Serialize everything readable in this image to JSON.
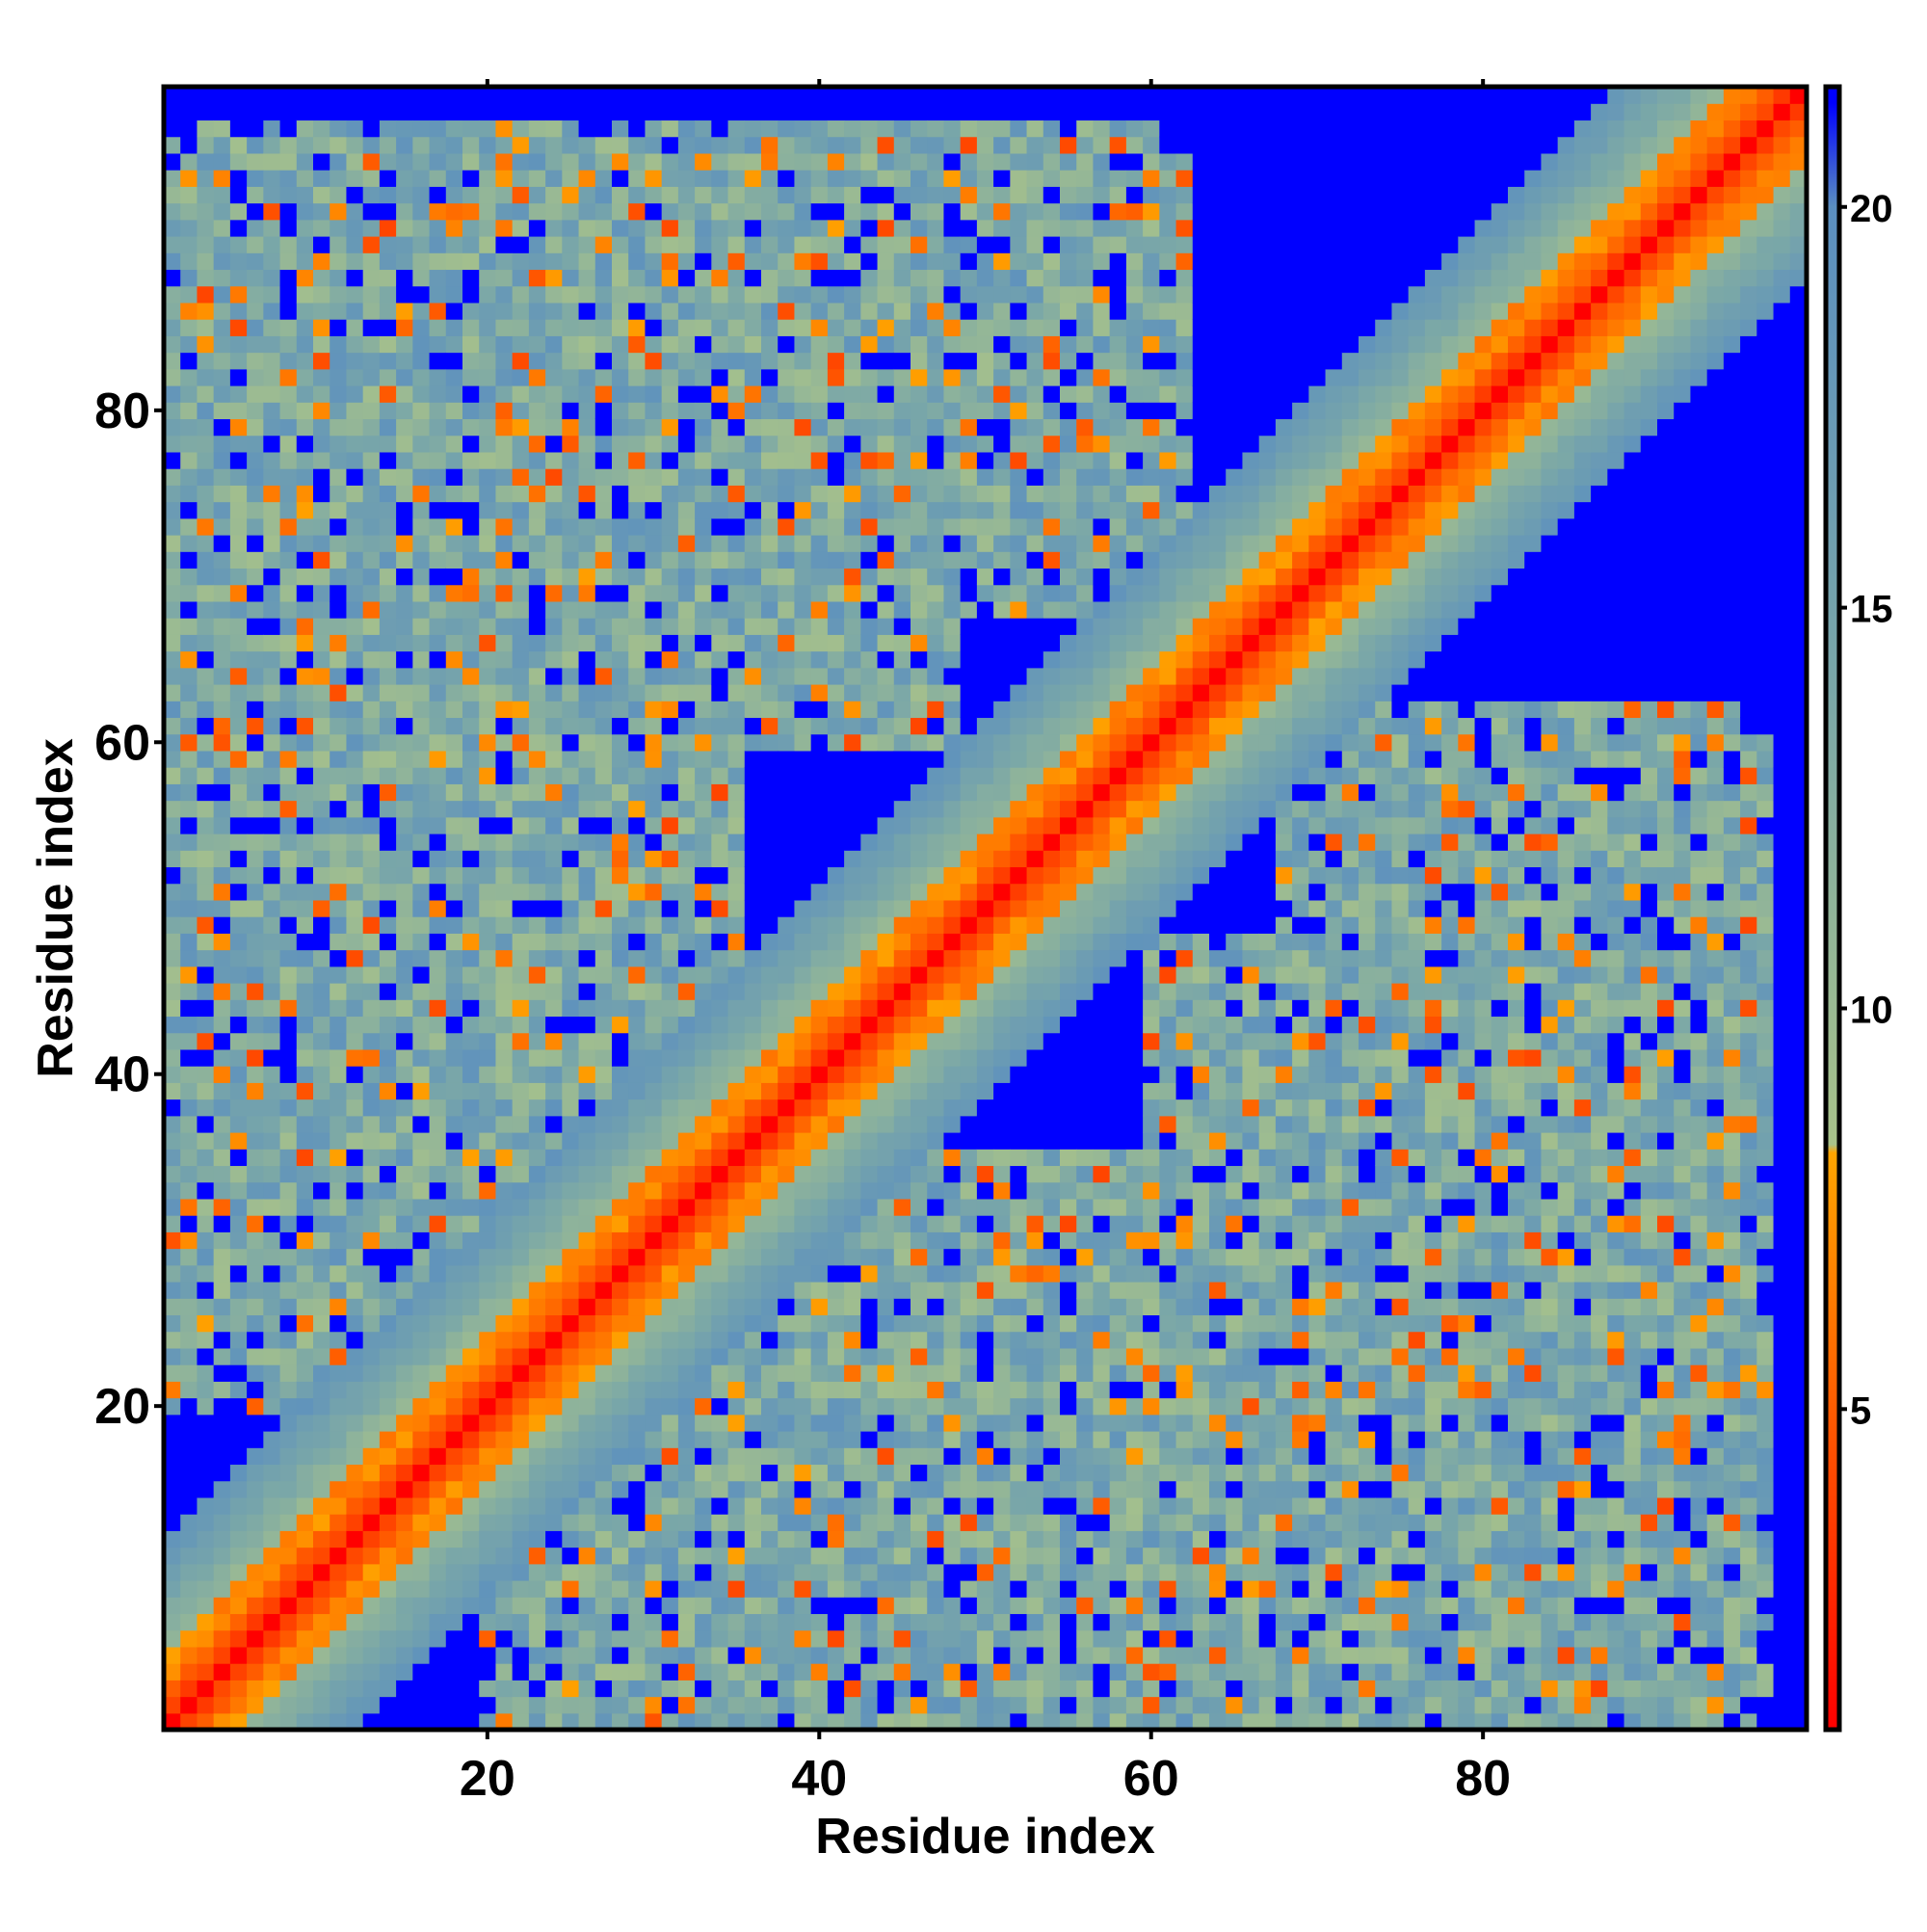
{
  "chart_data": {
    "type": "heatmap",
    "title": "",
    "xlabel": "Residue index",
    "ylabel": "Residue index",
    "xlim": [
      1,
      99
    ],
    "ylim": [
      1,
      99
    ],
    "xticks": [
      20,
      40,
      60,
      80
    ],
    "yticks": [
      20,
      40,
      60,
      80
    ],
    "colorbar": {
      "range": [
        1,
        21.5
      ],
      "ticks": [
        5,
        10,
        15,
        20
      ],
      "placement": "right",
      "stops": [
        {
          "value": 1,
          "color": "#ff0000"
        },
        {
          "value": 8.2,
          "color": "#ffa500"
        },
        {
          "value": 8.3,
          "color": "#a8c28a"
        },
        {
          "value": 14,
          "color": "#7aa7a8"
        },
        {
          "value": 20,
          "color": "#5b8fc0"
        },
        {
          "value": 21.3,
          "color": "#0000ff"
        }
      ]
    },
    "matrix_description": {
      "n": 99,
      "diagonal_value": 1,
      "background_value": 21.3,
      "contact_regions": [
        {
          "x": [
            1,
            35
          ],
          "y": [
            20,
            78
          ]
        },
        {
          "x": [
            25,
            48
          ],
          "y": [
            60,
            95
          ]
        },
        {
          "x": [
            48,
            62
          ],
          "y": [
            68,
            95
          ]
        },
        {
          "x": [
            75,
            97
          ],
          "y": [
            1,
            60
          ]
        },
        {
          "x": [
            38,
            70
          ],
          "y": [
            1,
            30
          ]
        },
        {
          "x": [
            60,
            87
          ],
          "y": [
            20,
            40
          ]
        },
        {
          "x": [
            78,
            95
          ],
          "y": [
            40,
            60
          ]
        }
      ]
    }
  }
}
